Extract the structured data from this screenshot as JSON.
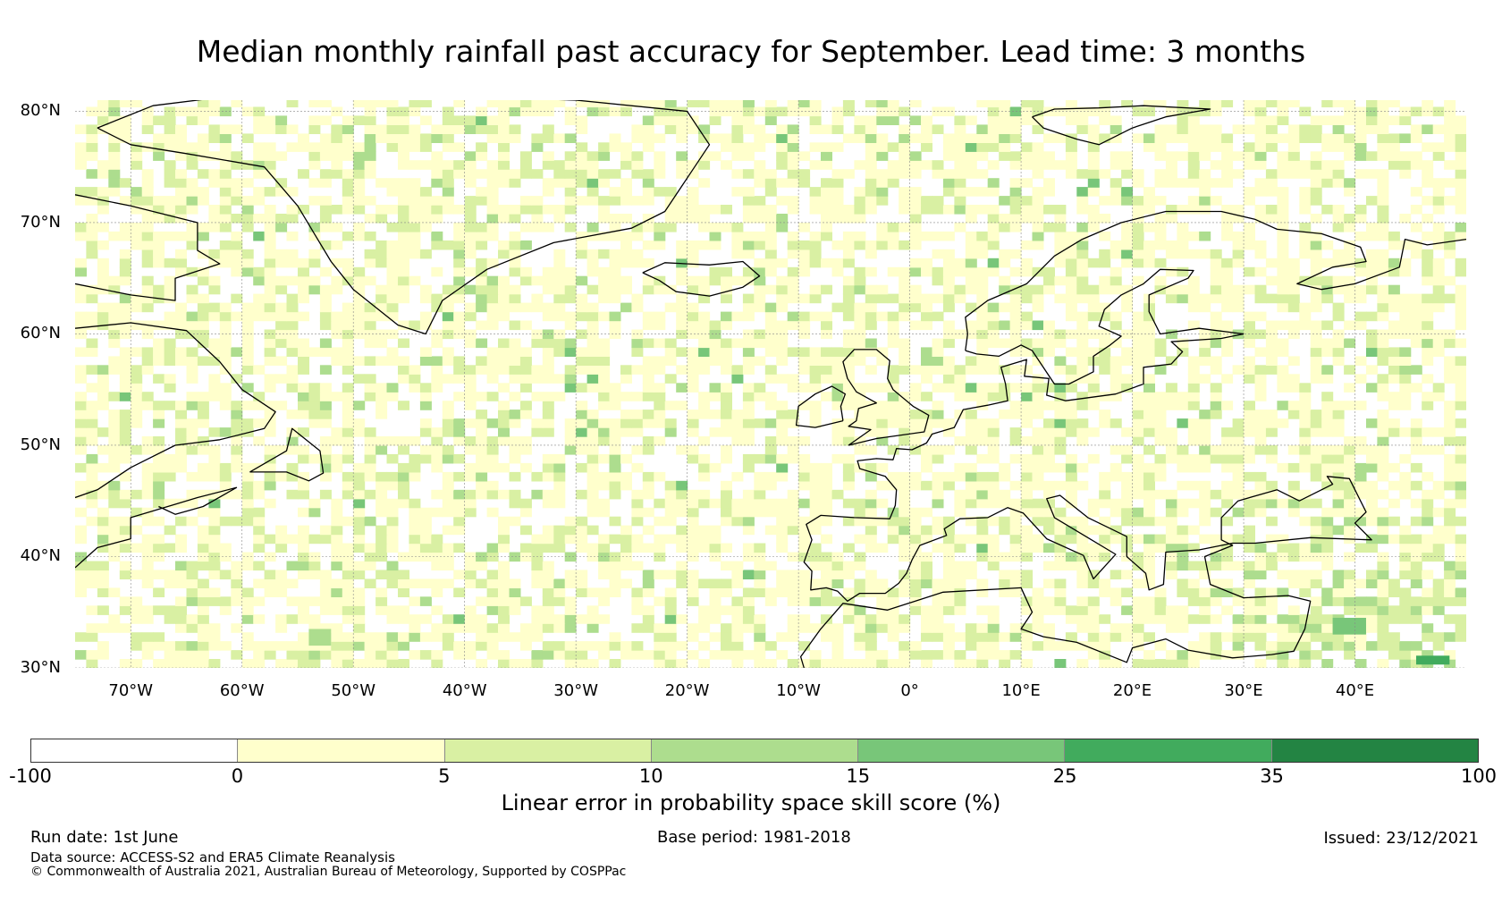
{
  "title": "Median monthly rainfall past accuracy for September. Lead time: 3 months",
  "map": {
    "lon_range": [
      -75,
      50
    ],
    "lat_range": [
      30,
      81
    ],
    "lat_labels": [
      "80°N",
      "70°N",
      "60°N",
      "50°N",
      "40°N",
      "30°N"
    ],
    "lat_values": [
      80,
      70,
      60,
      50,
      40,
      30
    ],
    "lon_labels": [
      "70°W",
      "60°W",
      "50°W",
      "40°W",
      "30°W",
      "20°W",
      "10°W",
      "0°",
      "10°E",
      "20°E",
      "30°E",
      "40°E"
    ],
    "lon_values": [
      -70,
      -60,
      -50,
      -40,
      -30,
      -20,
      -10,
      0,
      10,
      20,
      30,
      40
    ],
    "grid": true
  },
  "colorbar": {
    "label": "Linear error in probability space skill score (%)",
    "ticks": [
      "-100",
      "0",
      "5",
      "10",
      "15",
      "25",
      "35",
      "100"
    ],
    "colors": [
      "#ffffff",
      "#ffffcc",
      "#d9f0a3",
      "#addd8e",
      "#78c679",
      "#41ab5d",
      "#238443"
    ]
  },
  "footer": {
    "run_date": "Run date: 1st June",
    "base_period": "Base period: 1981-2018",
    "issued": "Issued: 23/12/2021",
    "data_source": "Data source: ACCESS-S2 and ERA5 Climate Reanalysis",
    "copyright": "© Commonwealth of Australia 2021, Australian Bureau of Meteorology, Supported by COSPPac"
  }
}
